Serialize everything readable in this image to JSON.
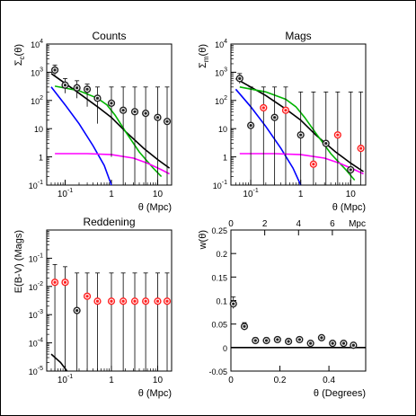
{
  "chart_data": [
    {
      "type": "scatter",
      "title": "Counts",
      "xlabel": "θ (Mpc)",
      "ylabel_main": "Σ",
      "ylabel_sub": "c",
      "ylabel_tail": "(θ)",
      "xscale": "log",
      "yscale": "log",
      "xlim": [
        0.04,
        20
      ],
      "ylim": [
        0.1,
        10000
      ],
      "x_ticks": [
        {
          "value": 0.1,
          "label": "10",
          "sup": "-1"
        },
        {
          "value": 1,
          "label": "1",
          "sup": ""
        },
        {
          "value": 10,
          "label": "10",
          "sup": ""
        }
      ],
      "y_ticks": [
        {
          "value": 0.1,
          "label": "10",
          "sup": "-1"
        },
        {
          "value": 1,
          "label": "1",
          "sup": ""
        },
        {
          "value": 10,
          "label": "10",
          "sup": ""
        },
        {
          "value": 100,
          "label": "10",
          "sup": "2"
        },
        {
          "value": 1000,
          "label": "10",
          "sup": "3"
        },
        {
          "value": 10000,
          "label": "10",
          "sup": "4"
        }
      ],
      "points": [
        {
          "x": 0.06,
          "y": 1200,
          "lo": 800,
          "hi": 1800,
          "color": "black"
        },
        {
          "x": 0.1,
          "y": 350,
          "lo": 180,
          "hi": 600,
          "color": "black"
        },
        {
          "x": 0.18,
          "y": 280,
          "lo": 120,
          "hi": 500,
          "color": "black"
        },
        {
          "x": 0.3,
          "y": 250,
          "lo": 60,
          "hi": 380,
          "color": "black"
        },
        {
          "x": 0.5,
          "y": 120,
          "lo": 15,
          "hi": 300,
          "color": "black"
        },
        {
          "x": 1.0,
          "y": 80,
          "lo": 1,
          "hi": 300,
          "color": "black"
        },
        {
          "x": 1.8,
          "y": 45,
          "lo": 0.1,
          "hi": 300,
          "color": "black"
        },
        {
          "x": 3.2,
          "y": 40,
          "lo": 0.1,
          "hi": 300,
          "color": "black"
        },
        {
          "x": 5.5,
          "y": 35,
          "lo": 0.1,
          "hi": 300,
          "color": "black"
        },
        {
          "x": 10,
          "y": 25,
          "lo": 0.1,
          "hi": 300,
          "color": "black"
        },
        {
          "x": 16,
          "y": 18,
          "lo": 0.1,
          "hi": 300,
          "color": "black"
        }
      ],
      "curves": [
        {
          "color": "#000000",
          "xy": [
            [
              0.05,
              900
            ],
            [
              0.2,
              180
            ],
            [
              0.5,
              60
            ],
            [
              1,
              25
            ],
            [
              2,
              8
            ],
            [
              5,
              2
            ],
            [
              10,
              0.8
            ],
            [
              18,
              0.4
            ]
          ]
        },
        {
          "color": "#00b400",
          "xy": [
            [
              0.06,
              320
            ],
            [
              0.2,
              220
            ],
            [
              0.5,
              120
            ],
            [
              0.8,
              70
            ],
            [
              1.2,
              30
            ],
            [
              2,
              8
            ],
            [
              4,
              1.5
            ],
            [
              8,
              0.4
            ],
            [
              12,
              0.2
            ]
          ]
        },
        {
          "color": "#0000ff",
          "xy": [
            [
              0.05,
              300
            ],
            [
              0.1,
              70
            ],
            [
              0.2,
              15
            ],
            [
              0.4,
              2.5
            ],
            [
              0.7,
              0.5
            ],
            [
              1,
              0.1
            ]
          ]
        },
        {
          "color": "#ff00ff",
          "xy": [
            [
              0.06,
              1.3
            ],
            [
              0.3,
              1.3
            ],
            [
              1,
              1.2
            ],
            [
              3,
              0.9
            ],
            [
              6,
              0.6
            ],
            [
              12,
              0.35
            ],
            [
              18,
              0.25
            ]
          ]
        }
      ]
    },
    {
      "type": "scatter",
      "title": "Mags",
      "xlabel": "θ (Mpc)",
      "ylabel_main": "Σ",
      "ylabel_sub": "m",
      "ylabel_tail": "(θ)",
      "xscale": "log",
      "yscale": "log",
      "xlim": [
        0.04,
        20
      ],
      "ylim": [
        0.1,
        10000
      ],
      "x_ticks": [
        {
          "value": 0.1,
          "label": "10",
          "sup": "-1"
        },
        {
          "value": 1,
          "label": "1",
          "sup": ""
        },
        {
          "value": 10,
          "label": "10",
          "sup": ""
        }
      ],
      "y_ticks": [
        {
          "value": 0.1,
          "label": "10",
          "sup": "-1"
        },
        {
          "value": 1,
          "label": "1",
          "sup": ""
        },
        {
          "value": 10,
          "label": "10",
          "sup": ""
        },
        {
          "value": 100,
          "label": "10",
          "sup": "2"
        },
        {
          "value": 1000,
          "label": "10",
          "sup": "3"
        },
        {
          "value": 10000,
          "label": "10",
          "sup": "4"
        }
      ],
      "points": [
        {
          "x": 0.06,
          "y": 600,
          "lo": 400,
          "hi": 900,
          "color": "black"
        },
        {
          "x": 0.1,
          "y": 13,
          "lo": 0.1,
          "hi": 300,
          "color": "black"
        },
        {
          "x": 0.18,
          "y": 55,
          "lo": 0.1,
          "hi": 300,
          "color": "red"
        },
        {
          "x": 0.3,
          "y": 25,
          "lo": 0.1,
          "hi": 300,
          "color": "black"
        },
        {
          "x": 0.5,
          "y": 45,
          "lo": 0.1,
          "hi": 300,
          "color": "red"
        },
        {
          "x": 1.0,
          "y": 6,
          "lo": 0.1,
          "hi": 200,
          "color": "black"
        },
        {
          "x": 1.8,
          "y": 0.55,
          "lo": 0.1,
          "hi": 200,
          "color": "red"
        },
        {
          "x": 3.2,
          "y": 3,
          "lo": 0.1,
          "hi": 200,
          "color": "black"
        },
        {
          "x": 5.5,
          "y": 6,
          "lo": 0.1,
          "hi": 200,
          "color": "red"
        },
        {
          "x": 10,
          "y": 0.35,
          "lo": 0.1,
          "hi": 200,
          "color": "black"
        },
        {
          "x": 16,
          "y": 2,
          "lo": 0.1,
          "hi": 200,
          "color": "red"
        }
      ],
      "curves": [
        {
          "color": "#000000",
          "xy": [
            [
              0.05,
              600
            ],
            [
              0.2,
              150
            ],
            [
              0.5,
              50
            ],
            [
              1,
              20
            ],
            [
              2,
              6
            ],
            [
              5,
              1.5
            ],
            [
              10,
              0.6
            ],
            [
              18,
              0.3
            ]
          ]
        },
        {
          "color": "#00b400",
          "xy": [
            [
              0.06,
              300
            ],
            [
              0.2,
              200
            ],
            [
              0.5,
              110
            ],
            [
              0.8,
              60
            ],
            [
              1.2,
              25
            ],
            [
              2,
              7
            ],
            [
              4,
              1.3
            ],
            [
              8,
              0.35
            ],
            [
              12,
              0.15
            ]
          ]
        },
        {
          "color": "#0000ff",
          "xy": [
            [
              0.05,
              250
            ],
            [
              0.1,
              60
            ],
            [
              0.2,
              12
            ],
            [
              0.4,
              2
            ],
            [
              0.7,
              0.4
            ],
            [
              1,
              0.1
            ]
          ]
        },
        {
          "color": "#ff00ff",
          "xy": [
            [
              0.06,
              1.3
            ],
            [
              0.3,
              1.3
            ],
            [
              1,
              1.2
            ],
            [
              3,
              0.9
            ],
            [
              6,
              0.6
            ],
            [
              12,
              0.35
            ],
            [
              18,
              0.25
            ]
          ]
        }
      ]
    },
    {
      "type": "scatter",
      "title": "Reddening",
      "xlabel": "θ (Mpc)",
      "ylabel_main": "E(B-V) (Mags)",
      "ylabel_sub": "",
      "ylabel_tail": "",
      "xscale": "log",
      "yscale": "log",
      "xlim": [
        0.04,
        20
      ],
      "ylim": [
        1e-05,
        1
      ],
      "x_ticks": [
        {
          "value": 0.1,
          "label": "10",
          "sup": "-1"
        },
        {
          "value": 1,
          "label": "1",
          "sup": ""
        },
        {
          "value": 10,
          "label": "10",
          "sup": ""
        }
      ],
      "y_ticks": [
        {
          "value": 0.1,
          "label": "10",
          "sup": "-1"
        },
        {
          "value": 0.01,
          "label": "10",
          "sup": "-2"
        },
        {
          "value": 0.001,
          "label": "10",
          "sup": "-3"
        },
        {
          "value": 0.0001,
          "label": "10",
          "sup": "-4"
        },
        {
          "value": 1e-05,
          "label": "10",
          "sup": "-5"
        }
      ],
      "points": [
        {
          "x": 0.06,
          "y": 0.014,
          "lo": 1e-05,
          "hi": 0.06,
          "color": "red"
        },
        {
          "x": 0.1,
          "y": 0.014,
          "lo": 1e-05,
          "hi": 0.05,
          "color": "red"
        },
        {
          "x": 0.18,
          "y": 0.0014,
          "lo": 1e-05,
          "hi": 0.03,
          "color": "black"
        },
        {
          "x": 0.3,
          "y": 0.0045,
          "lo": 1e-05,
          "hi": 0.03,
          "color": "red"
        },
        {
          "x": 0.5,
          "y": 0.003,
          "lo": 1e-05,
          "hi": 0.03,
          "color": "red"
        },
        {
          "x": 1.0,
          "y": 0.003,
          "lo": 1e-05,
          "hi": 0.03,
          "color": "red"
        },
        {
          "x": 1.8,
          "y": 0.003,
          "lo": 1e-05,
          "hi": 0.03,
          "color": "red"
        },
        {
          "x": 3.2,
          "y": 0.003,
          "lo": 1e-05,
          "hi": 0.03,
          "color": "red"
        },
        {
          "x": 5.5,
          "y": 0.003,
          "lo": 1e-05,
          "hi": 0.03,
          "color": "red"
        },
        {
          "x": 10,
          "y": 0.003,
          "lo": 1e-05,
          "hi": 0.03,
          "color": "red"
        },
        {
          "x": 16,
          "y": 0.003,
          "lo": 1e-05,
          "hi": 0.03,
          "color": "red"
        }
      ],
      "curves": [
        {
          "color": "#000000",
          "xy": [
            [
              0.05,
              4e-05
            ],
            [
              0.08,
              2e-05
            ],
            [
              0.11,
              1e-05
            ]
          ]
        }
      ]
    },
    {
      "type": "scatter",
      "title": "",
      "xlabel": "θ (Degrees)",
      "ylabel_main": "w(θ)",
      "ylabel_sub": "",
      "ylabel_tail": "",
      "top_axis_label": "Mpc",
      "xscale": "linear",
      "yscale": "linear",
      "xlim": [
        0,
        0.55
      ],
      "ylim": [
        -0.05,
        0.25
      ],
      "x_ticks": [
        {
          "value": 0,
          "label": "0",
          "sup": ""
        },
        {
          "value": 0.2,
          "label": "0.2",
          "sup": ""
        },
        {
          "value": 0.4,
          "label": "0.4",
          "sup": ""
        }
      ],
      "y_ticks": [
        {
          "value": -0.05,
          "label": "-0.05",
          "sup": ""
        },
        {
          "value": 0,
          "label": "0",
          "sup": ""
        },
        {
          "value": 0.05,
          "label": "0.05",
          "sup": ""
        },
        {
          "value": 0.1,
          "label": "0.1",
          "sup": ""
        },
        {
          "value": 0.15,
          "label": "0.15",
          "sup": ""
        },
        {
          "value": 0.2,
          "label": "0.2",
          "sup": ""
        },
        {
          "value": 0.25,
          "label": "0.25",
          "sup": ""
        }
      ],
      "top_ticks": [
        {
          "value": 0,
          "label": "0"
        },
        {
          "value": 0.138,
          "label": "2"
        },
        {
          "value": 0.276,
          "label": "4"
        },
        {
          "value": 0.414,
          "label": "6"
        }
      ],
      "points": [
        {
          "x": 0.01,
          "y": 0.093,
          "lo": 0.083,
          "hi": 0.108,
          "color": "black"
        },
        {
          "x": 0.055,
          "y": 0.045,
          "lo": 0.037,
          "hi": 0.053,
          "color": "black"
        },
        {
          "x": 0.1,
          "y": 0.015,
          "lo": 0.009,
          "hi": 0.021,
          "color": "black"
        },
        {
          "x": 0.145,
          "y": 0.015,
          "lo": 0.009,
          "hi": 0.021,
          "color": "black"
        },
        {
          "x": 0.19,
          "y": 0.017,
          "lo": 0.012,
          "hi": 0.022,
          "color": "black"
        },
        {
          "x": 0.235,
          "y": 0.013,
          "lo": 0.008,
          "hi": 0.018,
          "color": "black"
        },
        {
          "x": 0.28,
          "y": 0.017,
          "lo": 0.013,
          "hi": 0.021,
          "color": "black"
        },
        {
          "x": 0.325,
          "y": 0.009,
          "lo": 0.006,
          "hi": 0.012,
          "color": "black"
        },
        {
          "x": 0.37,
          "y": 0.021,
          "lo": 0.018,
          "hi": 0.024,
          "color": "black"
        },
        {
          "x": 0.415,
          "y": 0.009,
          "lo": 0.007,
          "hi": 0.011,
          "color": "black"
        },
        {
          "x": 0.46,
          "y": 0.009,
          "lo": 0.007,
          "hi": 0.011,
          "color": "black"
        },
        {
          "x": 0.5,
          "y": 0.005,
          "lo": 0.003,
          "hi": 0.007,
          "color": "black"
        }
      ],
      "curves": [
        {
          "color": "#000000",
          "xy": [
            [
              0,
              0
            ],
            [
              0.55,
              0
            ]
          ]
        }
      ]
    }
  ]
}
